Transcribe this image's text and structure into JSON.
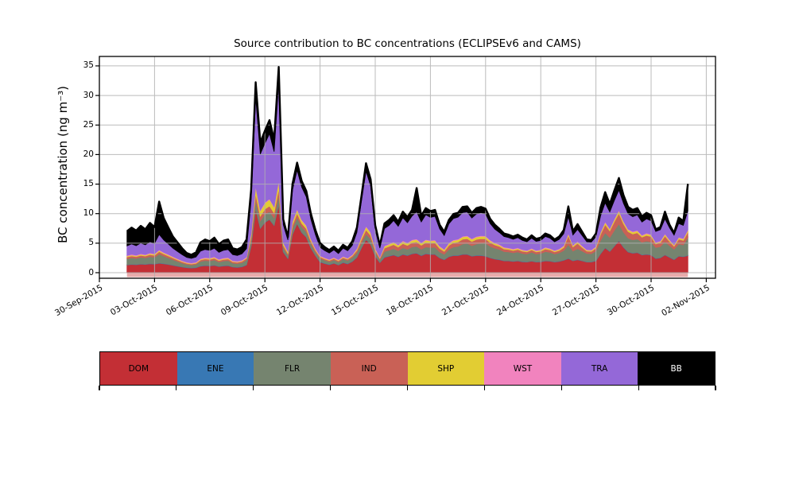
{
  "title": "Source contribution to BC concentrations (ECLIPSEv6 and CAMS)",
  "ylabel": "BC concentration (ng m⁻³)",
  "legend": {
    "items": [
      {
        "label": "DOM",
        "color": "#c32f35",
        "text_color": "#000000"
      },
      {
        "label": "ENE",
        "color": "#3878b4",
        "text_color": "#000000"
      },
      {
        "label": "FLR",
        "color": "#75846f",
        "text_color": "#000000"
      },
      {
        "label": "IND",
        "color": "#c96156",
        "text_color": "#000000"
      },
      {
        "label": "SHP",
        "color": "#e2cd33",
        "text_color": "#000000"
      },
      {
        "label": "WST",
        "color": "#f183be",
        "text_color": "#000000"
      },
      {
        "label": "TRA",
        "color": "#9468d8",
        "text_color": "#000000"
      },
      {
        "label": "BB",
        "color": "#000000",
        "text_color": "#ffffff"
      }
    ]
  },
  "chart_data": {
    "type": "area",
    "stacked": true,
    "title": "Source contribution to BC concentrations (ECLIPSEv6 and CAMS)",
    "xlabel": "",
    "ylabel": "BC concentration (ng m-3)",
    "grid": true,
    "legend_position": "bottom",
    "ylim": [
      -1.75,
      36.75
    ],
    "ytick_labels": [
      "0",
      "5",
      "10",
      "15",
      "20",
      "25",
      "30",
      "35"
    ],
    "ytick_values": [
      0,
      5,
      10,
      15,
      20,
      25,
      30,
      35
    ],
    "xtick_labels": [
      "30-Sep-2015",
      "03-Oct-2015",
      "06-Oct-2015",
      "09-Oct-2015",
      "12-Oct-2015",
      "15-Oct-2015",
      "18-Oct-2015",
      "21-Oct-2015",
      "24-Oct-2015",
      "27-Oct-2015",
      "30-Oct-2015",
      "02-Nov-2015"
    ],
    "xtick_day_offsets": [
      0,
      3,
      6,
      9,
      12,
      15,
      18,
      21,
      24,
      27,
      30,
      33
    ],
    "xlim_days": [
      0,
      33.5
    ],
    "x_unit": "days since 30-Sep-2015",
    "t_start": 1.5,
    "t_step": 0.25,
    "baseline_band": {
      "color": "#e8abab",
      "note": "pale band just below zero line across data range"
    },
    "series": [
      {
        "name": "DOM",
        "color": "#c32f35",
        "values": [
          1.3,
          1.4,
          1.35,
          1.45,
          1.4,
          1.5,
          1.45,
          1.6,
          1.5,
          1.4,
          1.25,
          1.1,
          0.95,
          0.85,
          0.8,
          0.85,
          1.1,
          1.2,
          1.15,
          1.25,
          1.05,
          1.15,
          1.2,
          0.95,
          0.9,
          1.0,
          1.3,
          4.5,
          10.8,
          7.5,
          8.5,
          9.0,
          8.0,
          11.5,
          3.5,
          2.4,
          6.5,
          8.3,
          6.8,
          6.0,
          4.2,
          2.9,
          1.8,
          1.55,
          1.35,
          1.6,
          1.3,
          1.7,
          1.5,
          1.9,
          2.6,
          4.2,
          5.6,
          4.8,
          2.8,
          1.7,
          2.6,
          2.8,
          3.0,
          2.7,
          3.1,
          2.9,
          3.2,
          3.3,
          2.9,
          3.2,
          3.1,
          3.1,
          2.5,
          2.2,
          2.7,
          2.9,
          2.9,
          3.1,
          3.1,
          2.8,
          2.9,
          2.9,
          2.8,
          2.5,
          2.3,
          2.2,
          2.0,
          2.0,
          1.9,
          2.0,
          1.85,
          1.8,
          1.95,
          1.8,
          1.85,
          2.0,
          1.95,
          1.8,
          1.9,
          2.1,
          2.4,
          2.0,
          2.2,
          2.0,
          1.8,
          1.8,
          2.0,
          3.2,
          4.2,
          3.6,
          4.5,
          5.4,
          4.3,
          3.5,
          3.3,
          3.4,
          3.0,
          3.1,
          3.0,
          2.4,
          2.5,
          3.0,
          2.6,
          2.2,
          2.8,
          2.7,
          2.9
        ]
      },
      {
        "name": "ENE",
        "color": "#3878b4",
        "constant": 0.06
      },
      {
        "name": "FLR",
        "color": "#75846f",
        "values": [
          1.0,
          1.05,
          1.0,
          1.1,
          1.05,
          1.15,
          1.1,
          1.5,
          1.25,
          1.05,
          0.9,
          0.75,
          0.6,
          0.5,
          0.45,
          0.5,
          0.75,
          0.8,
          0.78,
          0.85,
          0.7,
          0.78,
          0.8,
          0.6,
          0.58,
          0.62,
          0.8,
          1.0,
          1.5,
          1.2,
          1.3,
          1.3,
          1.2,
          1.6,
          0.7,
          0.5,
          0.9,
          1.0,
          0.9,
          0.85,
          0.7,
          0.55,
          0.55,
          0.5,
          0.45,
          0.5,
          0.45,
          0.55,
          0.5,
          0.6,
          0.7,
          0.8,
          0.9,
          0.85,
          0.6,
          0.45,
          0.9,
          0.95,
          1.0,
          0.95,
          1.05,
          1.0,
          1.1,
          1.1,
          1.0,
          1.1,
          1.1,
          1.15,
          0.95,
          0.85,
          1.2,
          1.4,
          1.5,
          1.7,
          1.8,
          1.7,
          1.9,
          2.0,
          2.1,
          1.9,
          1.8,
          1.7,
          1.5,
          1.45,
          1.4,
          1.45,
          1.35,
          1.3,
          1.45,
          1.3,
          1.35,
          1.5,
          1.45,
          1.3,
          1.4,
          1.6,
          2.3,
          1.6,
          1.8,
          1.6,
          1.4,
          1.35,
          1.6,
          2.2,
          2.5,
          2.3,
          2.6,
          2.8,
          2.5,
          2.3,
          2.2,
          2.25,
          2.1,
          2.2,
          2.15,
          1.8,
          1.85,
          2.2,
          1.9,
          1.7,
          2.0,
          1.95,
          3.0
        ]
      },
      {
        "name": "IND",
        "color": "#c96156",
        "values": [
          0.3,
          0.32,
          0.3,
          0.33,
          0.3,
          0.35,
          0.32,
          0.4,
          0.35,
          0.32,
          0.28,
          0.25,
          0.22,
          0.18,
          0.16,
          0.18,
          0.25,
          0.27,
          0.26,
          0.28,
          0.24,
          0.26,
          0.27,
          0.22,
          0.21,
          0.23,
          0.27,
          0.5,
          1.0,
          0.8,
          0.9,
          0.95,
          0.85,
          1.1,
          0.4,
          0.3,
          0.6,
          0.7,
          0.6,
          0.55,
          0.4,
          0.3,
          0.25,
          0.22,
          0.2,
          0.22,
          0.2,
          0.24,
          0.22,
          0.26,
          0.4,
          0.55,
          0.7,
          0.6,
          0.35,
          0.22,
          0.6,
          0.65,
          0.7,
          0.62,
          0.72,
          0.66,
          0.74,
          0.76,
          0.68,
          0.76,
          0.73,
          0.74,
          0.6,
          0.5,
          0.65,
          0.72,
          0.74,
          0.8,
          0.8,
          0.72,
          0.78,
          0.8,
          0.78,
          0.65,
          0.55,
          0.5,
          0.45,
          0.42,
          0.4,
          0.42,
          0.38,
          0.36,
          0.4,
          0.37,
          0.38,
          0.45,
          0.4,
          0.36,
          0.4,
          0.5,
          1.5,
          0.7,
          0.9,
          0.6,
          0.4,
          0.4,
          0.5,
          1.0,
          1.4,
          1.1,
          1.5,
          1.8,
          1.4,
          1.1,
          1.0,
          1.05,
          0.85,
          0.95,
          0.9,
          0.6,
          0.65,
          0.95,
          0.7,
          0.5,
          0.8,
          0.75,
          0.9
        ]
      },
      {
        "name": "SHP",
        "color": "#e2cd33",
        "values": [
          0.15,
          0.16,
          0.15,
          0.16,
          0.15,
          0.17,
          0.16,
          0.2,
          0.17,
          0.16,
          0.14,
          0.12,
          0.11,
          0.09,
          0.08,
          0.09,
          0.12,
          0.13,
          0.13,
          0.14,
          0.12,
          0.13,
          0.13,
          0.11,
          0.1,
          0.11,
          0.13,
          0.5,
          1.2,
          0.9,
          1.0,
          1.1,
          0.95,
          1.3,
          0.35,
          0.25,
          0.5,
          0.6,
          0.5,
          0.45,
          0.3,
          0.2,
          0.12,
          0.11,
          0.1,
          0.11,
          0.1,
          0.12,
          0.11,
          0.13,
          0.25,
          0.4,
          0.5,
          0.45,
          0.25,
          0.12,
          0.3,
          0.32,
          0.35,
          0.3,
          0.36,
          0.33,
          0.37,
          0.38,
          0.34,
          0.38,
          0.36,
          0.37,
          0.3,
          0.25,
          0.33,
          0.36,
          0.37,
          0.4,
          0.4,
          0.36,
          0.39,
          0.4,
          0.39,
          0.3,
          0.25,
          0.22,
          0.2,
          0.18,
          0.17,
          0.18,
          0.16,
          0.15,
          0.17,
          0.15,
          0.16,
          0.2,
          0.17,
          0.15,
          0.17,
          0.22,
          0.3,
          0.2,
          0.25,
          0.2,
          0.15,
          0.15,
          0.2,
          0.3,
          0.35,
          0.3,
          0.35,
          0.4,
          0.35,
          0.3,
          0.3,
          0.3,
          0.25,
          0.28,
          0.26,
          0.2,
          0.2,
          0.28,
          0.22,
          0.17,
          0.25,
          0.23,
          0.3
        ]
      },
      {
        "name": "WST",
        "color": "#f183be",
        "constant": 0.12
      },
      {
        "name": "TRA",
        "color": "#9468d8",
        "values": [
          1.6,
          1.75,
          1.6,
          1.8,
          1.65,
          1.9,
          1.75,
          2.6,
          2.1,
          1.75,
          1.4,
          1.2,
          1.0,
          0.8,
          0.75,
          0.85,
          1.25,
          1.35,
          1.3,
          1.45,
          1.15,
          1.3,
          1.35,
          1.0,
          0.95,
          1.05,
          1.4,
          5.5,
          15.0,
          9.5,
          10.0,
          11.0,
          9.3,
          16.5,
          3.0,
          1.9,
          5.3,
          6.6,
          5.5,
          4.8,
          3.3,
          2.3,
          1.4,
          1.2,
          1.05,
          1.25,
          1.0,
          1.35,
          1.2,
          1.55,
          2.7,
          6.0,
          9.3,
          7.8,
          3.0,
          1.5,
          2.9,
          3.1,
          3.6,
          3.1,
          3.9,
          3.4,
          4.0,
          4.6,
          3.5,
          4.2,
          3.9,
          4.0,
          2.9,
          2.3,
          3.2,
          3.6,
          3.7,
          4.0,
          4.0,
          3.5,
          3.8,
          3.9,
          3.7,
          2.8,
          2.3,
          2.0,
          1.8,
          1.7,
          1.6,
          1.7,
          1.55,
          1.45,
          1.7,
          1.5,
          1.55,
          1.8,
          1.7,
          1.45,
          1.6,
          2.0,
          2.8,
          1.7,
          2.0,
          1.7,
          1.3,
          1.3,
          1.6,
          2.7,
          3.2,
          2.8,
          3.1,
          3.4,
          3.0,
          2.6,
          2.5,
          2.6,
          2.2,
          2.4,
          2.3,
          1.8,
          1.9,
          2.5,
          2.0,
          1.6,
          2.3,
          2.2,
          3.2
        ]
      },
      {
        "name": "BB",
        "color": "#000000",
        "values": [
          2.5,
          2.77,
          2.55,
          2.91,
          2.6,
          3.18,
          2.77,
          5.55,
          3.68,
          2.77,
          1.98,
          1.53,
          1.07,
          0.73,
          0.61,
          0.78,
          1.48,
          1.7,
          1.53,
          1.78,
          1.39,
          1.63,
          1.7,
          1.07,
          1.01,
          1.14,
          1.55,
          1.85,
          2.55,
          1.95,
          2.15,
          2.3,
          2.05,
          2.65,
          0.9,
          0.5,
          1.05,
          1.25,
          1.05,
          1.0,
          0.95,
          0.8,
          0.73,
          0.57,
          0.5,
          0.57,
          0.5,
          0.59,
          0.52,
          0.71,
          0.8,
          0.9,
          1.35,
          1.15,
          0.85,
          0.46,
          0.85,
          0.93,
          0.9,
          0.78,
          1.02,
          0.96,
          1.04,
          4.01,
          1.03,
          1.11,
          1.06,
          1.09,
          0.7,
          0.65,
          0.67,
          0.77,
          0.74,
          0.95,
          0.95,
          0.87,
          0.98,
          0.95,
          0.88,
          0.8,
          0.75,
          0.63,
          0.5,
          0.5,
          0.48,
          0.5,
          0.46,
          0.39,
          0.48,
          0.43,
          0.46,
          0.5,
          0.48,
          0.39,
          0.48,
          0.63,
          1.75,
          0.65,
          0.9,
          0.65,
          0.4,
          0.35,
          0.55,
          1.45,
          1.8,
          1.35,
          1.7,
          2.05,
          1.4,
          1.15,
          1.15,
          1.15,
          0.95,
          1.02,
          0.94,
          0.35,
          0.45,
          1.22,
          0.53,
          0.38,
          1.0,
          0.72,
          4.55
        ]
      }
    ]
  }
}
